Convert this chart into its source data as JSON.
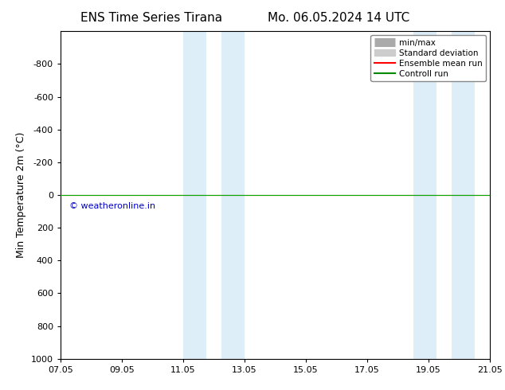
{
  "title_left": "ENS Time Series Tirana",
  "title_right": "Mo. 06.05.2024 14 UTC",
  "ylabel": "Min Temperature 2m (°C)",
  "ylim_top": -1000,
  "ylim_bottom": 1000,
  "yticks": [
    -800,
    -600,
    -400,
    -200,
    0,
    200,
    400,
    600,
    800,
    1000
  ],
  "xlim": [
    0,
    14
  ],
  "x_tick_labels": [
    "07.05",
    "09.05",
    "11.05",
    "13.05",
    "15.05",
    "17.05",
    "19.05",
    "21.05"
  ],
  "x_tick_positions": [
    0,
    2,
    4,
    6,
    8,
    10,
    12,
    14
  ],
  "shaded_bands": [
    {
      "x_start": 4.0,
      "x_end": 4.75,
      "color": "#ddeef8"
    },
    {
      "x_start": 5.25,
      "x_end": 6.0,
      "color": "#ddeef8"
    },
    {
      "x_start": 11.5,
      "x_end": 12.25,
      "color": "#ddeef8"
    },
    {
      "x_start": 12.75,
      "x_end": 13.5,
      "color": "#ddeef8"
    }
  ],
  "control_run_y": 0,
  "control_run_color": "#00aa00",
  "ensemble_mean_color": "#ff0000",
  "minmax_color": "#bbbbbb",
  "std_color": "#cccccc",
  "watermark": "© weatheronline.in",
  "watermark_color": "#0000cc",
  "background_color": "#ffffff",
  "plot_background": "#ffffff",
  "legend_items": [
    "min/max",
    "Standard deviation",
    "Ensemble mean run",
    "Controll run"
  ],
  "legend_colors": [
    "#aaaaaa",
    "#cccccc",
    "#ff0000",
    "#008800"
  ],
  "title_fontsize": 11,
  "ylabel_fontsize": 9,
  "tick_fontsize": 8,
  "legend_fontsize": 7.5
}
